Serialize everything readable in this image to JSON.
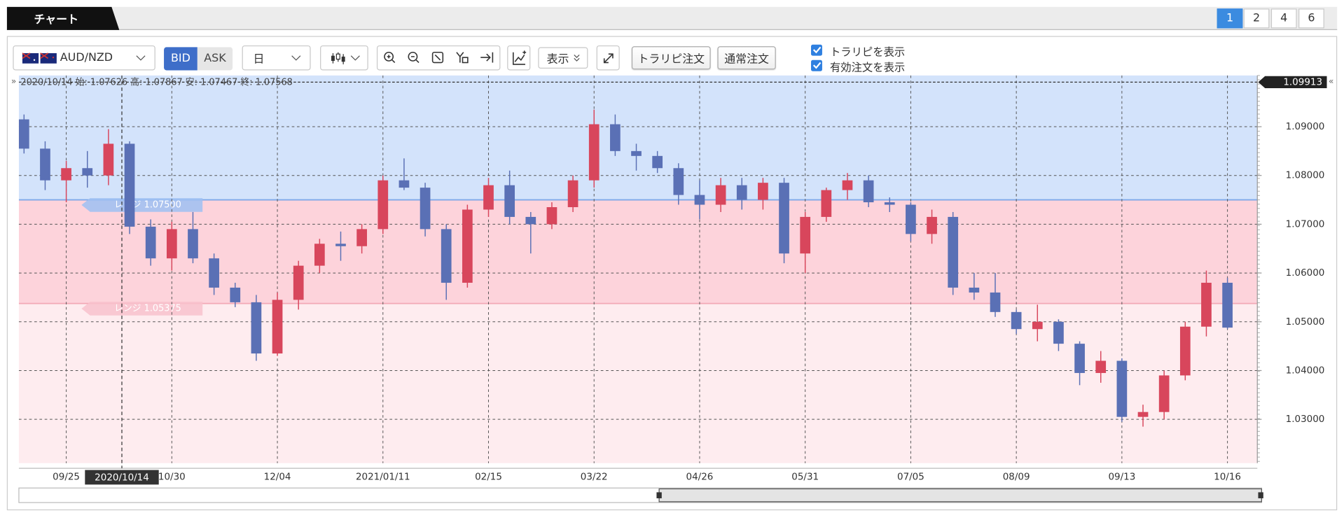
{
  "ui": {
    "tab": "チャート",
    "pages": [
      "1",
      "2",
      "4",
      "6"
    ],
    "pair": "AUD/NZD",
    "bid": "BID",
    "ask": "ASK",
    "period": "日",
    "display": "表示",
    "trarepi_order": "トラリピ注文",
    "normal_order": "通常注文",
    "checks": [
      "トラリピを表示",
      "有効注文を表示"
    ]
  },
  "chart_data": {
    "type": "candlestick",
    "categories": [
      null,
      null,
      "09/25",
      null,
      null,
      null,
      null,
      "10/30",
      null,
      null,
      null,
      null,
      "12/04",
      null,
      null,
      null,
      null,
      "2021/01/11",
      null,
      null,
      null,
      null,
      "02/15",
      null,
      null,
      null,
      null,
      "03/22",
      null,
      null,
      null,
      null,
      "04/26",
      null,
      null,
      null,
      null,
      "05/31",
      null,
      null,
      null,
      null,
      "07/05",
      null,
      null,
      null,
      null,
      "08/09",
      null,
      null,
      null,
      null,
      "09/13",
      null,
      null,
      null,
      null,
      "10/16"
    ],
    "open": [
      1.0915,
      1.0855,
      1.079,
      1.0815,
      1.08,
      1.0865,
      1.0695,
      1.063,
      1.069,
      1.063,
      1.057,
      1.054,
      1.0435,
      1.0545,
      1.0615,
      1.066,
      1.0655,
      1.069,
      1.079,
      1.0775,
      1.069,
      1.058,
      1.073,
      1.078,
      1.0715,
      1.07,
      1.0735,
      1.079,
      1.0905,
      1.085,
      1.084,
      1.0815,
      1.076,
      1.074,
      1.078,
      1.075,
      1.0785,
      1.064,
      1.0715,
      1.077,
      1.079,
      1.0745,
      1.074,
      1.068,
      1.0715,
      1.057,
      1.056,
      1.052,
      1.0485,
      1.05,
      1.0455,
      1.0395,
      1.042,
      1.0305,
      1.0315,
      1.039,
      1.049,
      1.058
    ],
    "high": [
      1.0925,
      1.087,
      1.083,
      1.085,
      1.0895,
      1.087,
      1.071,
      1.0705,
      1.0725,
      1.064,
      1.058,
      1.0555,
      1.056,
      1.0625,
      1.067,
      1.0685,
      1.07,
      1.08,
      1.0835,
      1.0785,
      1.07,
      1.074,
      1.0795,
      1.081,
      1.0725,
      1.0745,
      1.08,
      1.0935,
      1.0925,
      1.0865,
      1.085,
      1.0825,
      1.079,
      1.0795,
      1.0795,
      1.0795,
      1.0795,
      1.0725,
      1.0775,
      1.0805,
      1.08,
      1.0755,
      1.0745,
      1.073,
      1.0725,
      1.06,
      1.06,
      1.0525,
      1.0535,
      1.0505,
      1.046,
      1.044,
      1.0425,
      1.033,
      1.04,
      1.05,
      1.0605,
      1.059
    ],
    "low": [
      1.0845,
      1.077,
      1.0745,
      1.0775,
      1.078,
      1.068,
      1.0615,
      1.0605,
      1.062,
      1.0555,
      1.053,
      1.042,
      1.043,
      1.0525,
      1.06,
      1.0625,
      1.064,
      1.068,
      1.077,
      1.0675,
      1.0545,
      1.057,
      1.0715,
      1.07,
      1.064,
      1.069,
      1.0725,
      1.0775,
      1.084,
      1.081,
      1.0805,
      1.074,
      1.071,
      1.0725,
      1.073,
      1.073,
      1.062,
      1.06,
      1.0705,
      1.075,
      1.0735,
      1.0725,
      1.0665,
      1.066,
      1.0555,
      1.0545,
      1.051,
      1.0475,
      1.046,
      1.044,
      1.037,
      1.0375,
      1.0295,
      1.0285,
      1.03,
      1.038,
      1.047,
      1.0485
    ],
    "close": [
      1.0855,
      1.079,
      1.0815,
      1.08,
      1.0865,
      1.0695,
      1.063,
      1.069,
      1.063,
      1.057,
      1.054,
      1.0435,
      1.0545,
      1.0615,
      1.066,
      1.0655,
      1.069,
      1.079,
      1.0775,
      1.069,
      1.058,
      1.073,
      1.078,
      1.0715,
      1.07,
      1.0735,
      1.079,
      1.0905,
      1.085,
      1.084,
      1.0815,
      1.076,
      1.074,
      1.078,
      1.075,
      1.0785,
      1.064,
      1.0715,
      1.077,
      1.079,
      1.0745,
      1.074,
      1.068,
      1.0715,
      1.057,
      1.056,
      1.052,
      1.0485,
      1.05,
      1.0455,
      1.0395,
      1.042,
      1.0305,
      1.0315,
      1.039,
      1.049,
      1.058,
      1.0488
    ],
    "up_color": "#d8465c",
    "down_color": "#5a70b5",
    "ylim": [
      1.02102,
      1.1005
    ],
    "yticks": [
      {
        "value": 1.03,
        "label": "1.03000"
      },
      {
        "value": 1.04,
        "label": "1.04000"
      },
      {
        "value": 1.05,
        "label": "1.05000"
      },
      {
        "value": 1.06,
        "label": "1.06000"
      },
      {
        "value": 1.07,
        "label": "1.07000"
      },
      {
        "value": 1.08,
        "label": "1.08000"
      },
      {
        "value": 1.09,
        "label": "1.09000"
      }
    ],
    "grid": true,
    "price_line": 1.09913,
    "ranges": [
      {
        "label": "レンジ 1.07500",
        "value": 1.075,
        "color": "#d3e3fb"
      },
      {
        "label": "レンジ 1.05375",
        "value": 1.05375,
        "color": "#fdd3db"
      }
    ],
    "below_color": "#feecef",
    "info": {
      "date": "2020/10/14",
      "fields": [
        {
          "label": "始:",
          "value": 1.07626
        },
        {
          "label": "高:",
          "value": 1.07867
        },
        {
          "label": "安:",
          "value": 1.07467
        },
        {
          "label": "終:",
          "value": 1.07568
        }
      ]
    }
  }
}
